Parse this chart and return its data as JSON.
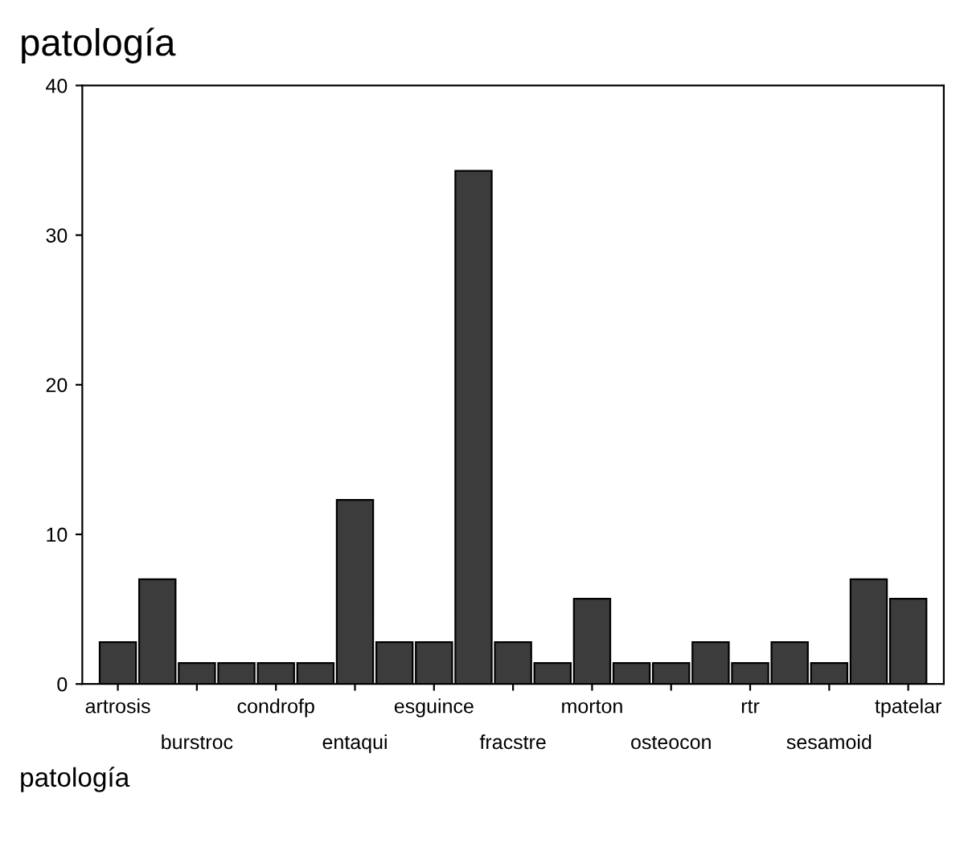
{
  "chart_data": {
    "type": "bar",
    "title": "patología",
    "xlabel": "patología",
    "categories": [
      "artrosis",
      null,
      "burstroc",
      null,
      "condrofp",
      null,
      "entaqui",
      null,
      "esguince",
      null,
      "fracstre",
      null,
      "morton",
      null,
      "osteocon",
      null,
      "rtr",
      null,
      "sesamoid",
      null,
      "tpatelar"
    ],
    "values": [
      2.8,
      7.0,
      1.4,
      1.4,
      1.4,
      1.4,
      12.3,
      2.8,
      2.8,
      34.3,
      2.8,
      1.4,
      5.7,
      1.4,
      1.4,
      2.8,
      1.4,
      2.8,
      1.4,
      7.0,
      5.7
    ],
    "color": "#3c3c3c",
    "ylim": [
      0,
      40
    ],
    "yticks": [
      0,
      10,
      20,
      30,
      40
    ],
    "grid": false,
    "legend": false
  }
}
